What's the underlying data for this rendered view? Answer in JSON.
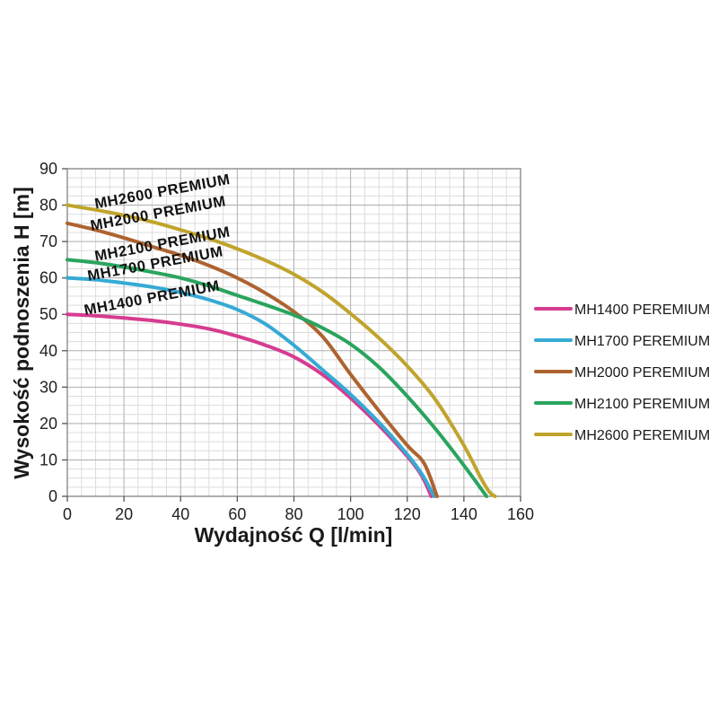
{
  "figure": {
    "background_color": "#ffffff",
    "minor_grid_color": "#dcdcdc",
    "major_grid_color": "#aeaeae",
    "frame_color": "#8c8c8c",
    "tick_color": "#555555"
  },
  "legend": {
    "items": [
      {
        "label": "MH1400 PEREMIUM",
        "color": "#d63c90"
      },
      {
        "label": "MH1700 PEREMIUM",
        "color": "#35aad4"
      },
      {
        "label": "MH2000 PEREMIUM",
        "color": "#ad6330"
      },
      {
        "label": "MH2100 PEREMIUM",
        "color": "#2aa45e"
      },
      {
        "label": "MH2600 PEREMIUM",
        "color": "#c0a42c"
      }
    ]
  },
  "chart_data": {
    "type": "line",
    "title": "",
    "xlabel": "Wydajność Q [l/min]",
    "ylabel": "Wysokość podnoszenia H [m]",
    "xlim": [
      0,
      160
    ],
    "ylim": [
      0,
      90
    ],
    "x_ticks": [
      0,
      20,
      40,
      60,
      80,
      100,
      120,
      140,
      160
    ],
    "y_ticks": [
      0,
      10,
      20,
      30,
      40,
      50,
      60,
      70,
      80,
      90
    ],
    "x_minor_step": 5,
    "y_minor_step": 2.5,
    "grid": true,
    "legend_position": "right",
    "series": [
      {
        "name": "MH1400 PEREMIUM",
        "color": "#d63c90",
        "points": [
          [
            0,
            50
          ],
          [
            10,
            49.6
          ],
          [
            20,
            49
          ],
          [
            30,
            48.3
          ],
          [
            40,
            47.3
          ],
          [
            50,
            46
          ],
          [
            60,
            44
          ],
          [
            70,
            41.5
          ],
          [
            80,
            38.3
          ],
          [
            90,
            33.5
          ],
          [
            100,
            27
          ],
          [
            110,
            19.5
          ],
          [
            120,
            11
          ],
          [
            125,
            5.8
          ],
          [
            128.5,
            0
          ]
        ]
      },
      {
        "name": "MH1700 PEREMIUM",
        "color": "#35aad4",
        "points": [
          [
            0,
            60
          ],
          [
            10,
            59.5
          ],
          [
            20,
            58.6
          ],
          [
            30,
            57.5
          ],
          [
            40,
            56
          ],
          [
            50,
            54
          ],
          [
            60,
            51.3
          ],
          [
            70,
            47.3
          ],
          [
            80,
            41.5
          ],
          [
            90,
            34.8
          ],
          [
            100,
            28
          ],
          [
            110,
            20.3
          ],
          [
            120,
            11.5
          ],
          [
            125,
            6.3
          ],
          [
            129.5,
            0
          ]
        ]
      },
      {
        "name": "MH2000 PEREMIUM",
        "color": "#ad6330",
        "points": [
          [
            0,
            75
          ],
          [
            10,
            73.2
          ],
          [
            20,
            71
          ],
          [
            30,
            68.6
          ],
          [
            40,
            66.2
          ],
          [
            50,
            63.4
          ],
          [
            60,
            60
          ],
          [
            70,
            55.8
          ],
          [
            80,
            50.7
          ],
          [
            90,
            44
          ],
          [
            100,
            33.5
          ],
          [
            110,
            23.5
          ],
          [
            120,
            14
          ],
          [
            126,
            9
          ],
          [
            130.5,
            0
          ]
        ]
      },
      {
        "name": "MH2100 PEREMIUM",
        "color": "#2aa45e",
        "points": [
          [
            0,
            65
          ],
          [
            10,
            64.2
          ],
          [
            20,
            63
          ],
          [
            30,
            61.6
          ],
          [
            40,
            60
          ],
          [
            50,
            57.8
          ],
          [
            60,
            55.2
          ],
          [
            70,
            52.6
          ],
          [
            80,
            49.8
          ],
          [
            90,
            46.3
          ],
          [
            100,
            41.8
          ],
          [
            110,
            35.5
          ],
          [
            120,
            27.5
          ],
          [
            130,
            18.5
          ],
          [
            140,
            8.5
          ],
          [
            148,
            0
          ]
        ]
      },
      {
        "name": "MH2600 PEREMIUM",
        "color": "#c0a42c",
        "points": [
          [
            0,
            80
          ],
          [
            10,
            78.7
          ],
          [
            20,
            77.2
          ],
          [
            30,
            75.4
          ],
          [
            40,
            73.2
          ],
          [
            50,
            70.8
          ],
          [
            60,
            68
          ],
          [
            70,
            64.8
          ],
          [
            80,
            61
          ],
          [
            90,
            56.2
          ],
          [
            100,
            50.2
          ],
          [
            110,
            43.5
          ],
          [
            120,
            35.8
          ],
          [
            130,
            26.5
          ],
          [
            140,
            14
          ],
          [
            146,
            5
          ],
          [
            149,
            1.2
          ],
          [
            151,
            0
          ]
        ]
      }
    ],
    "annotations": [
      {
        "text": "MH2600 PREMIUM",
        "x": 10,
        "y": 79,
        "rotation": -10.5
      },
      {
        "text": "MH2000 PREMIUM",
        "x": 8.5,
        "y": 73,
        "rotation": -10.5
      },
      {
        "text": "MH2100 PREMIUM",
        "x": 10,
        "y": 64.6,
        "rotation": -10.5
      },
      {
        "text": "MH1700 PREMIUM",
        "x": 7.5,
        "y": 59.2,
        "rotation": -10.5
      },
      {
        "text": "MH1400 PREMIUM",
        "x": 6.3,
        "y": 49.8,
        "rotation": -10.5
      }
    ]
  }
}
